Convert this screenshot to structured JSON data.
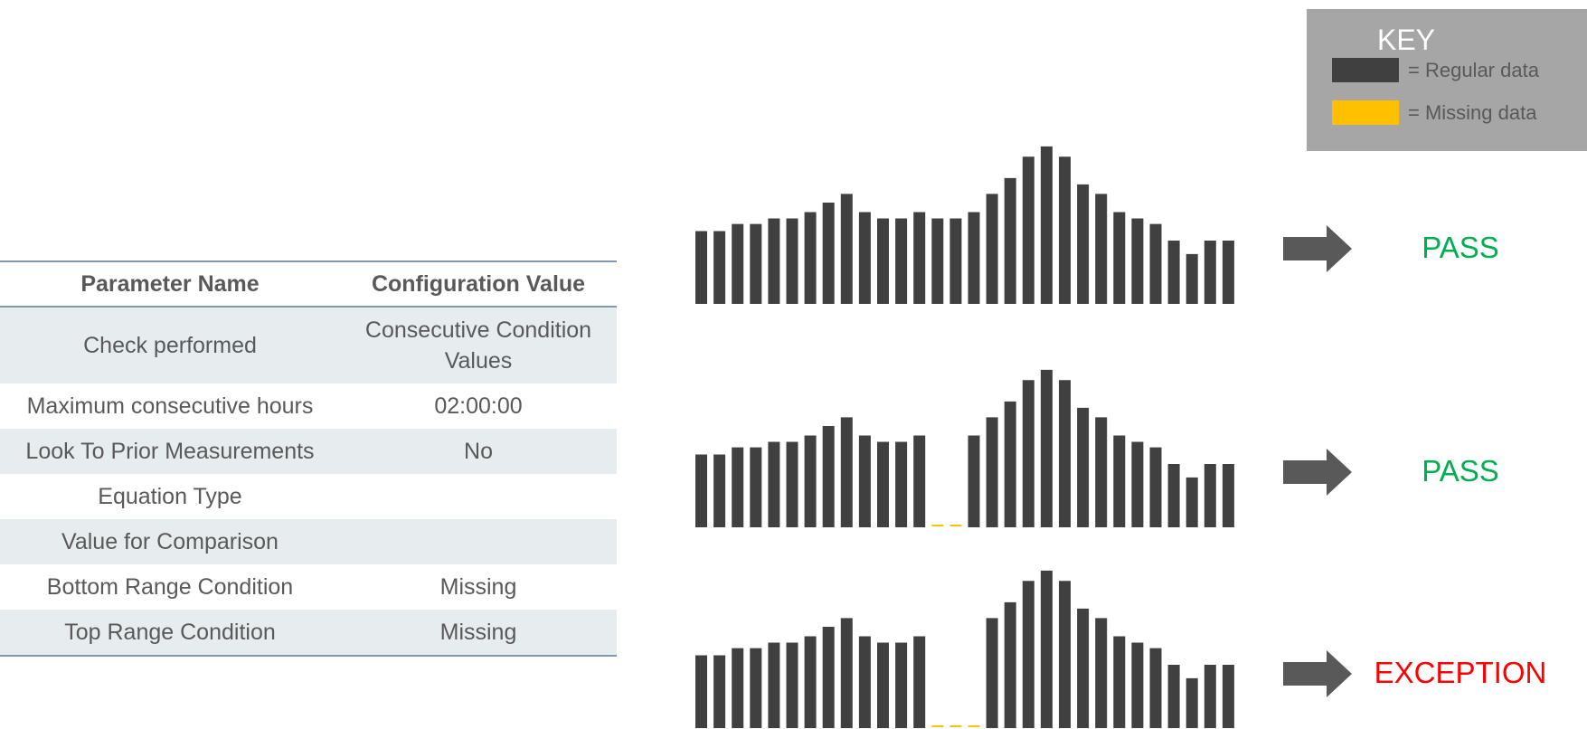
{
  "key": {
    "title": "KEY",
    "items": [
      {
        "label": "= Regular data",
        "color": "#404040"
      },
      {
        "label": "= Missing data",
        "color": "#ffc000"
      }
    ]
  },
  "table": {
    "headers": [
      "Parameter Name",
      "Configuration Value"
    ],
    "rows": [
      [
        "Check performed",
        "Consecutive Condition Values"
      ],
      [
        "Maximum consecutive hours",
        "02:00:00"
      ],
      [
        "Look To Prior Measurements",
        "No"
      ],
      [
        "Equation Type",
        ""
      ],
      [
        "Value for Comparison",
        ""
      ],
      [
        "Bottom Range Condition",
        "Missing"
      ],
      [
        "Top Range Condition",
        "Missing"
      ]
    ]
  },
  "colors": {
    "regular": "#404040",
    "missing": "#ffc000",
    "pass": "#00b050",
    "exception": "#ff0000",
    "arrow": "#595959"
  },
  "charts": [
    {
      "values": [
        9.2,
        9.2,
        10.1,
        10.1,
        10.8,
        10.8,
        11.6,
        12.8,
        13.9,
        11.6,
        10.8,
        10.8,
        11.6,
        10.8,
        10.8,
        11.6,
        13.9,
        15.9,
        18.6,
        19.9,
        18.6,
        15.1,
        13.9,
        11.6,
        10.8,
        10.1,
        8.0,
        6.3,
        8.0,
        8.0
      ],
      "missing": [],
      "result": "PASS",
      "result_color": "#00b050"
    },
    {
      "values": [
        9.2,
        9.2,
        10.1,
        10.1,
        10.8,
        10.8,
        11.6,
        12.8,
        13.9,
        11.6,
        10.8,
        10.8,
        11.6,
        null,
        null,
        11.6,
        13.9,
        15.9,
        18.6,
        19.9,
        18.6,
        15.1,
        13.9,
        11.6,
        10.8,
        10.1,
        8.0,
        6.3,
        8.0,
        8.0
      ],
      "missing": [
        13,
        14
      ],
      "result": "PASS",
      "result_color": "#00b050"
    },
    {
      "values": [
        9.2,
        9.2,
        10.1,
        10.1,
        10.8,
        10.8,
        11.6,
        12.8,
        13.9,
        11.6,
        10.8,
        10.8,
        11.6,
        null,
        null,
        null,
        13.9,
        15.9,
        18.6,
        19.9,
        18.6,
        15.1,
        13.9,
        11.6,
        10.8,
        10.1,
        8.0,
        6.3,
        8.0,
        8.0
      ],
      "missing": [
        13,
        14,
        15
      ],
      "result": "EXCEPTION",
      "result_color": "#ff0000"
    }
  ]
}
